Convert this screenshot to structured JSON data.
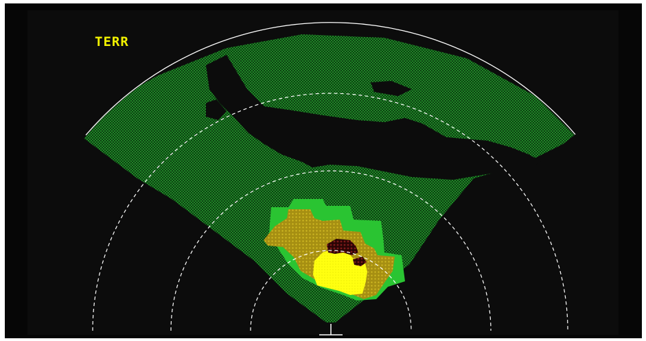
{
  "display": {
    "mode_label": "TERR"
  },
  "colors": {
    "background": "#0c0c0c",
    "range_ring": "#ffffff",
    "terrain_green": "#22a82a",
    "terrain_green_dark": "#0c3a10",
    "terrain_amber": "#b09a1c",
    "terrain_bright_green": "#2cc83a",
    "terrain_yellow": "#ffff14",
    "terrain_red": "#4a0d0d",
    "mode_label": "#f2f200"
  },
  "icons": {
    "aircraft_symbol": "ownship-symbol"
  }
}
